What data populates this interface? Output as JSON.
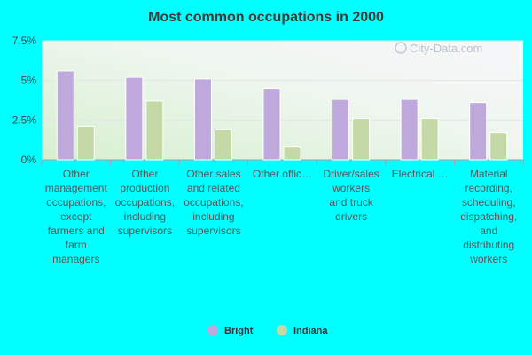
{
  "chart_data": {
    "type": "bar",
    "title": "Most common occupations in 2000",
    "categories": [
      [
        "Other",
        "management",
        "occupations,",
        "except",
        "farmers and",
        "farm",
        "managers"
      ],
      [
        "Other",
        "production",
        "occupations,",
        "including",
        "supervisors"
      ],
      [
        "Other sales",
        "and related",
        "occupations,",
        "including",
        "supervisors"
      ],
      [
        "Other offic…"
      ],
      [
        "Driver/sales",
        "workers",
        "and truck",
        "drivers"
      ],
      [
        "Electrical …"
      ],
      [
        "Material",
        "recording,",
        "scheduling,",
        "dispatching,",
        "and",
        "distributing",
        "workers"
      ]
    ],
    "series": [
      {
        "name": "Bright",
        "color": "#bfa8dc",
        "values": [
          5.6,
          5.2,
          5.1,
          4.5,
          3.8,
          3.8,
          3.6
        ]
      },
      {
        "name": "Indiana",
        "color": "#c5d9a6",
        "values": [
          2.1,
          3.7,
          1.9,
          0.8,
          2.6,
          2.6,
          1.7
        ]
      }
    ],
    "yticks": [
      "0%",
      "2.5%",
      "5%",
      "7.5%"
    ],
    "ytick_values": [
      0,
      2.5,
      5,
      7.5
    ],
    "ylim": [
      0,
      7.5
    ],
    "legend_position": "bottom",
    "grid": true
  },
  "watermark": "City-Data.com"
}
